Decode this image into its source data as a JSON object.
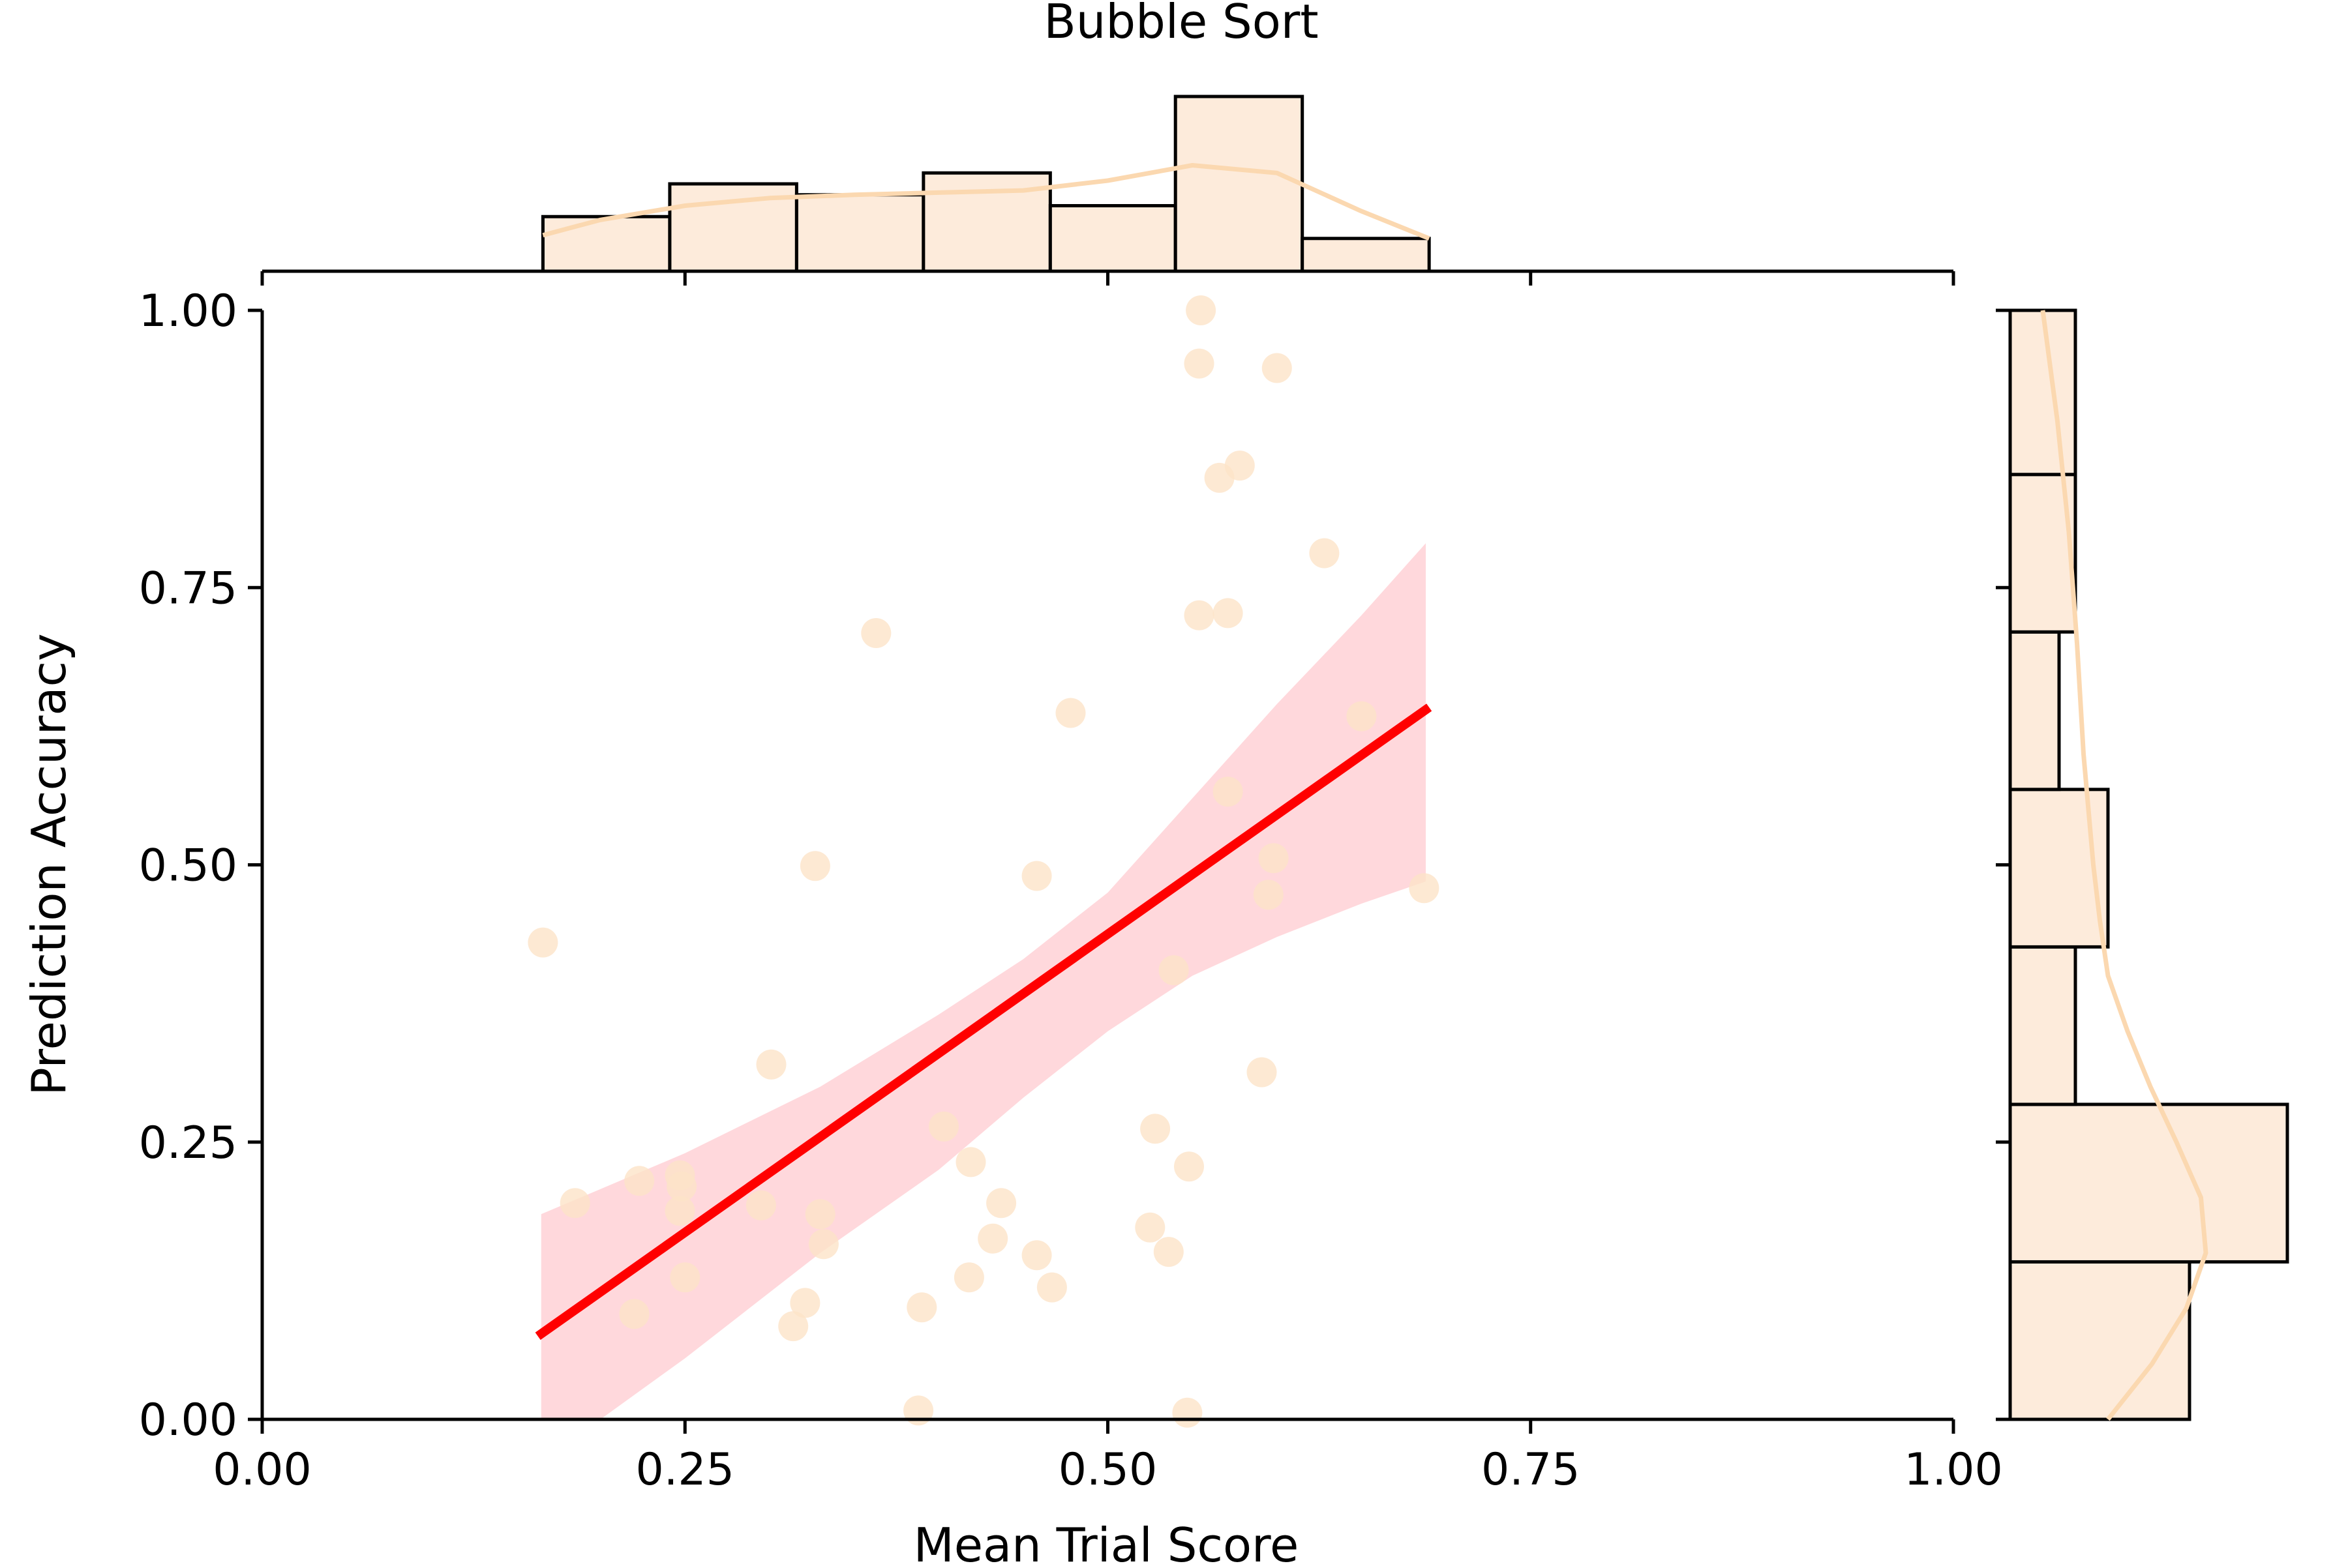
{
  "chart_data": {
    "type": "scatter",
    "title": "Bubble Sort",
    "xlabel": "Mean Trial Score",
    "ylabel": "Prediction Accuracy",
    "xlim": [
      0,
      1
    ],
    "ylim": [
      0,
      1
    ],
    "x_ticks": [
      "0.00",
      "0.25",
      "0.50",
      "0.75",
      "1.00"
    ],
    "y_ticks": [
      "0.00",
      "0.25",
      "0.50",
      "0.75",
      "1.00"
    ],
    "grid": false,
    "point_color": "#fde3c8",
    "hist_color": "#fdebdb",
    "kde_color": "#fbd8b0",
    "fit_color": "#ff0000",
    "ci_color": "#ffd1d6",
    "points": [
      {
        "x": 0.166,
        "y": 0.43
      },
      {
        "x": 0.185,
        "y": 0.195
      },
      {
        "x": 0.22,
        "y": 0.095
      },
      {
        "x": 0.223,
        "y": 0.215
      },
      {
        "x": 0.247,
        "y": 0.22
      },
      {
        "x": 0.248,
        "y": 0.21
      },
      {
        "x": 0.247,
        "y": 0.188
      },
      {
        "x": 0.25,
        "y": 0.128
      },
      {
        "x": 0.295,
        "y": 0.193
      },
      {
        "x": 0.301,
        "y": 0.32
      },
      {
        "x": 0.314,
        "y": 0.084
      },
      {
        "x": 0.321,
        "y": 0.105
      },
      {
        "x": 0.327,
        "y": 0.499
      },
      {
        "x": 0.33,
        "y": 0.185
      },
      {
        "x": 0.332,
        "y": 0.158
      },
      {
        "x": 0.363,
        "y": 0.709
      },
      {
        "x": 0.388,
        "y": 0.008
      },
      {
        "x": 0.39,
        "y": 0.101
      },
      {
        "x": 0.403,
        "y": 0.264
      },
      {
        "x": 0.418,
        "y": 0.128
      },
      {
        "x": 0.419,
        "y": 0.232
      },
      {
        "x": 0.432,
        "y": 0.163
      },
      {
        "x": 0.437,
        "y": 0.195
      },
      {
        "x": 0.458,
        "y": 0.148
      },
      {
        "x": 0.458,
        "y": 0.49
      },
      {
        "x": 0.467,
        "y": 0.119
      },
      {
        "x": 0.478,
        "y": 0.637
      },
      {
        "x": 0.525,
        "y": 0.173
      },
      {
        "x": 0.528,
        "y": 0.262
      },
      {
        "x": 0.536,
        "y": 0.151
      },
      {
        "x": 0.539,
        "y": 0.405
      },
      {
        "x": 0.547,
        "y": 0.006
      },
      {
        "x": 0.548,
        "y": 0.228
      },
      {
        "x": 0.554,
        "y": 0.725
      },
      {
        "x": 0.554,
        "y": 0.952
      },
      {
        "x": 0.555,
        "y": 1.0
      },
      {
        "x": 0.566,
        "y": 0.849
      },
      {
        "x": 0.571,
        "y": 0.727
      },
      {
        "x": 0.571,
        "y": 0.566
      },
      {
        "x": 0.578,
        "y": 0.86
      },
      {
        "x": 0.591,
        "y": 0.313
      },
      {
        "x": 0.595,
        "y": 0.473
      },
      {
        "x": 0.598,
        "y": 0.506
      },
      {
        "x": 0.6,
        "y": 0.948
      },
      {
        "x": 0.628,
        "y": 0.781
      },
      {
        "x": 0.65,
        "y": 0.634
      },
      {
        "x": 0.687,
        "y": 0.479
      }
    ],
    "fit_line": [
      {
        "x": 0.163,
        "y": 0.075
      },
      {
        "x": 0.69,
        "y": 0.642
      }
    ],
    "ci_upper": [
      {
        "x": 0.165,
        "y": 0.185
      },
      {
        "x": 0.25,
        "y": 0.24
      },
      {
        "x": 0.33,
        "y": 0.3
      },
      {
        "x": 0.4,
        "y": 0.365
      },
      {
        "x": 0.45,
        "y": 0.415
      },
      {
        "x": 0.5,
        "y": 0.475
      },
      {
        "x": 0.55,
        "y": 0.56
      },
      {
        "x": 0.6,
        "y": 0.645
      },
      {
        "x": 0.65,
        "y": 0.725
      },
      {
        "x": 0.688,
        "y": 0.79
      }
    ],
    "ci_lower": [
      {
        "x": 0.688,
        "y": 0.485
      },
      {
        "x": 0.65,
        "y": 0.465
      },
      {
        "x": 0.6,
        "y": 0.435
      },
      {
        "x": 0.55,
        "y": 0.4
      },
      {
        "x": 0.5,
        "y": 0.35
      },
      {
        "x": 0.45,
        "y": 0.29
      },
      {
        "x": 0.4,
        "y": 0.225
      },
      {
        "x": 0.33,
        "y": 0.15
      },
      {
        "x": 0.25,
        "y": 0.055
      },
      {
        "x": 0.2,
        "y": 0.0
      },
      {
        "x": 0.165,
        "y": 0.0
      }
    ],
    "x_histogram": {
      "edges": [
        0.166,
        0.241,
        0.316,
        0.391,
        0.466,
        0.54,
        0.615,
        0.69
      ],
      "counts": [
        5,
        8,
        7,
        9,
        6,
        16,
        3
      ]
    },
    "x_kde": [
      {
        "x": 0.166,
        "y": 3.3
      },
      {
        "x": 0.2,
        "y": 4.7
      },
      {
        "x": 0.25,
        "y": 6.0
      },
      {
        "x": 0.3,
        "y": 6.7
      },
      {
        "x": 0.35,
        "y": 7.0
      },
      {
        "x": 0.4,
        "y": 7.2
      },
      {
        "x": 0.45,
        "y": 7.4
      },
      {
        "x": 0.5,
        "y": 8.3
      },
      {
        "x": 0.55,
        "y": 9.7
      },
      {
        "x": 0.6,
        "y": 9.0
      },
      {
        "x": 0.65,
        "y": 5.5
      },
      {
        "x": 0.69,
        "y": 3.0
      }
    ],
    "y_histogram": {
      "edges": [
        0.0,
        0.142,
        0.284,
        0.426,
        0.568,
        0.71,
        0.852,
        1.0
      ],
      "counts": [
        11,
        17,
        4,
        6,
        3,
        4,
        4
      ]
    },
    "y_kde": [
      {
        "y": 0.0,
        "x": 6.0
      },
      {
        "y": 0.05,
        "x": 8.7
      },
      {
        "y": 0.1,
        "x": 10.8
      },
      {
        "y": 0.15,
        "x": 12.0
      },
      {
        "y": 0.2,
        "x": 11.7
      },
      {
        "y": 0.25,
        "x": 10.2
      },
      {
        "y": 0.3,
        "x": 8.6
      },
      {
        "y": 0.35,
        "x": 7.2
      },
      {
        "y": 0.4,
        "x": 6.0
      },
      {
        "y": 0.45,
        "x": 5.5
      },
      {
        "y": 0.5,
        "x": 5.1
      },
      {
        "y": 0.55,
        "x": 4.8
      },
      {
        "y": 0.6,
        "x": 4.5
      },
      {
        "y": 0.7,
        "x": 4.1
      },
      {
        "y": 0.8,
        "x": 3.6
      },
      {
        "y": 0.9,
        "x": 2.9
      },
      {
        "y": 1.0,
        "x": 2.0
      }
    ]
  }
}
